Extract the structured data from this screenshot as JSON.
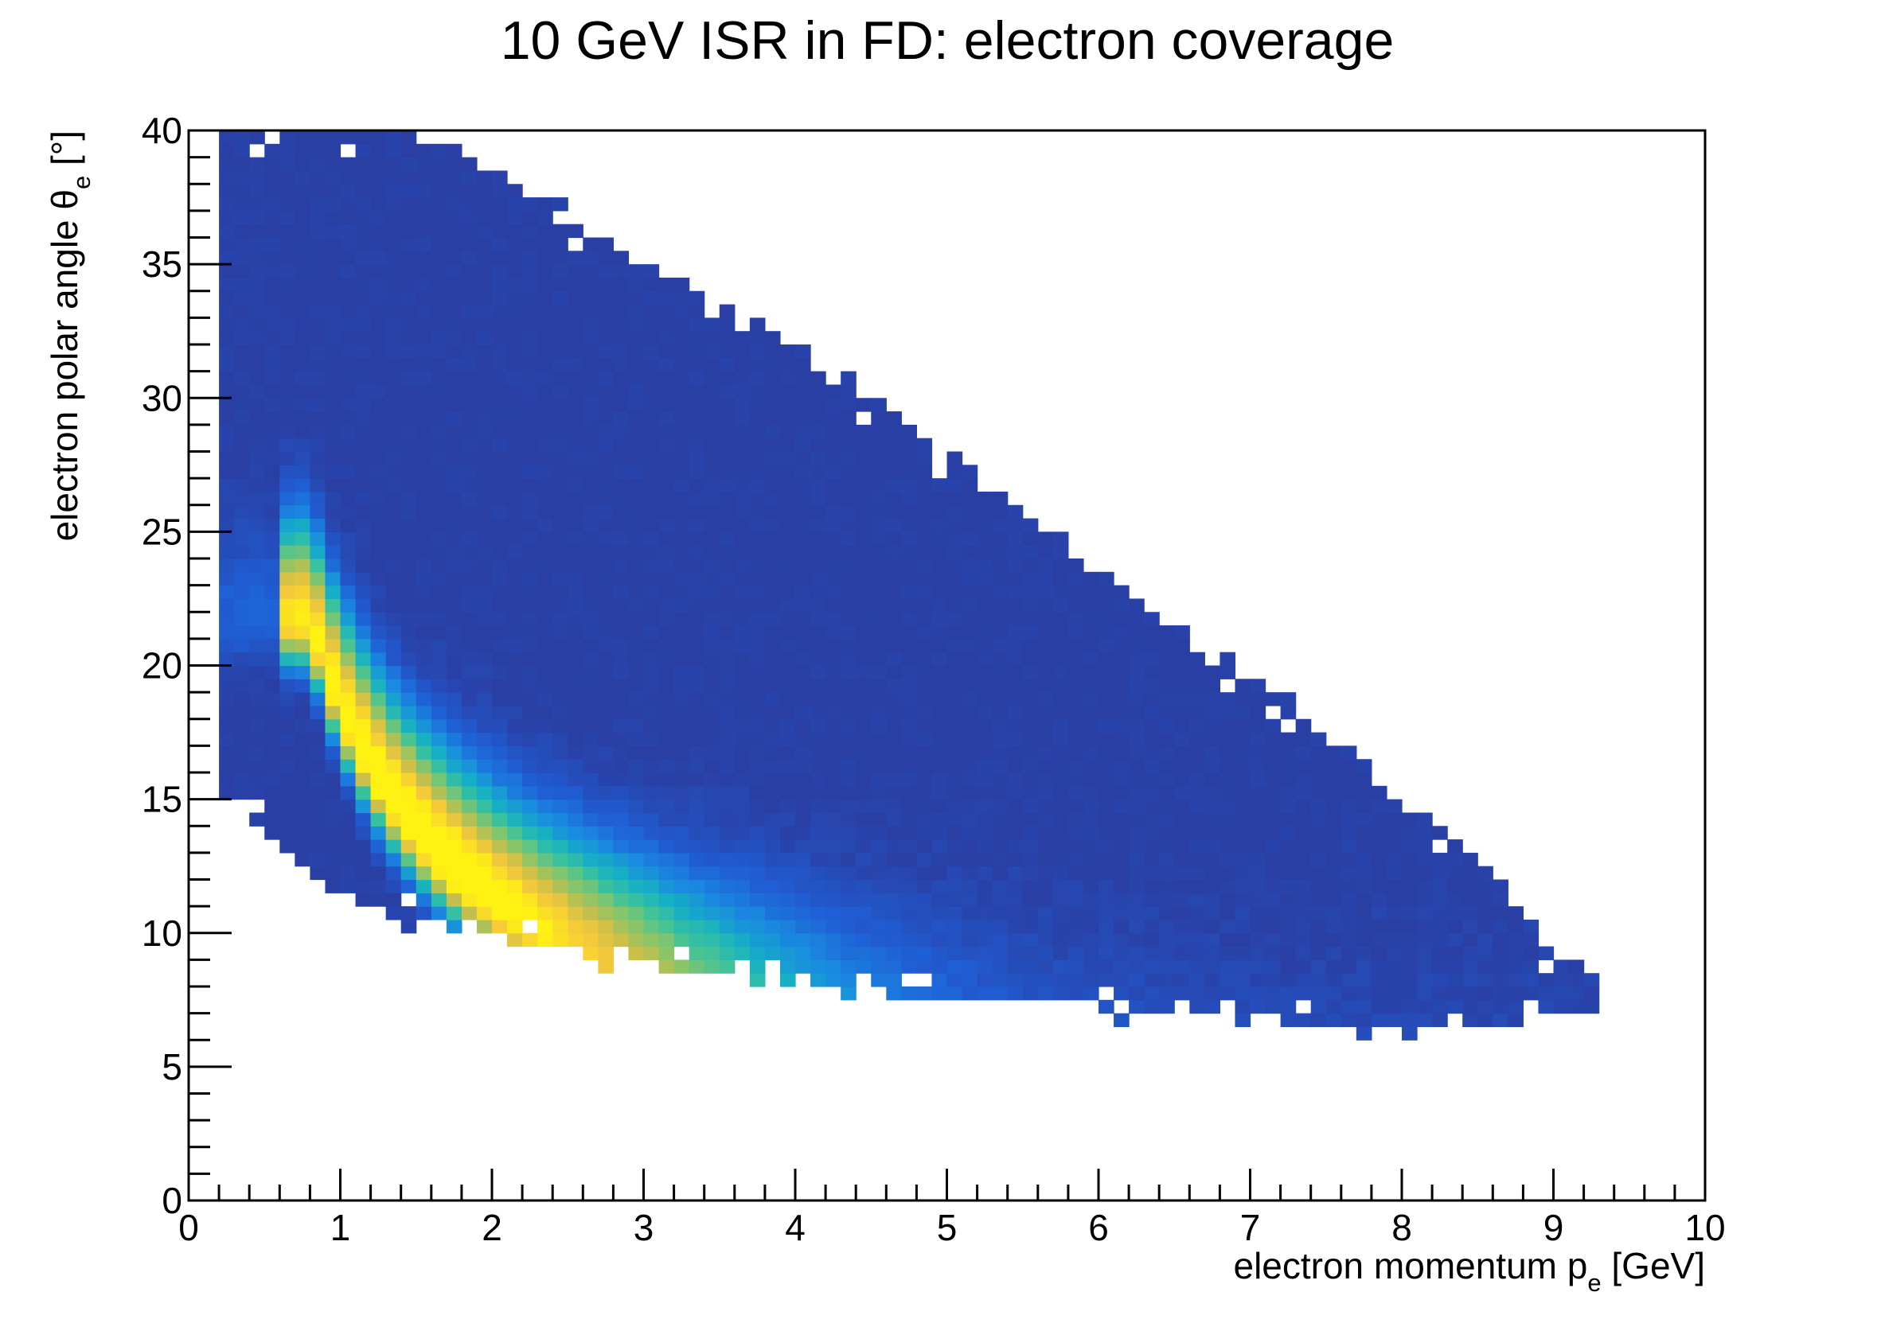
{
  "chart_data": {
    "type": "heatmap",
    "title": "10 GeV ISR in FD: electron coverage",
    "xlabel": {
      "main": "electron momentum p",
      "sub": "e",
      "unit": " [GeV]"
    },
    "ylabel": {
      "main": "electron polar angle θ",
      "sub": "e",
      "unit": " [°]"
    },
    "xlim": [
      0,
      10
    ],
    "ylim": [
      0,
      40
    ],
    "x_ticks": [
      {
        "value": 0,
        "label": "0"
      },
      {
        "value": 1,
        "label": "1"
      },
      {
        "value": 2,
        "label": "2"
      },
      {
        "value": 3,
        "label": "3"
      },
      {
        "value": 4,
        "label": "4"
      },
      {
        "value": 5,
        "label": "5"
      },
      {
        "value": 6,
        "label": "6"
      },
      {
        "value": 7,
        "label": "7"
      },
      {
        "value": 8,
        "label": "8"
      },
      {
        "value": 9,
        "label": "9"
      },
      {
        "value": 10,
        "label": "10"
      }
    ],
    "y_ticks": [
      {
        "value": 0,
        "label": "0"
      },
      {
        "value": 5,
        "label": "5"
      },
      {
        "value": 10,
        "label": "10"
      },
      {
        "value": 15,
        "label": "15"
      },
      {
        "value": 20,
        "label": "20"
      },
      {
        "value": 25,
        "label": "25"
      },
      {
        "value": 30,
        "label": "30"
      },
      {
        "value": 35,
        "label": "35"
      },
      {
        "value": 40,
        "label": "40"
      }
    ],
    "x_minor_per_major": 5,
    "y_minor_per_major": 5,
    "bin_width": 0.1,
    "bin_height": 0.5,
    "grid": false,
    "colorbar": false,
    "colormap": [
      "#2a3fa4",
      "#1f5fd6",
      "#1a8be0",
      "#16b0c4",
      "#3dc39a",
      "#85c56c",
      "#c9bf4a",
      "#f5c93a",
      "#fff212"
    ],
    "distribution": {
      "description_of_regions": "single-ridge density",
      "ridge_theta_at_p1": 18.5,
      "ridge_power": 0.72,
      "upper_edge": [
        [
          0.3,
          40
        ],
        [
          1.5,
          40
        ],
        [
          2.0,
          38.5
        ],
        [
          3.0,
          35
        ],
        [
          4.0,
          32
        ],
        [
          5.0,
          28
        ],
        [
          6.0,
          23.5
        ],
        [
          7.0,
          19.5
        ],
        [
          8.0,
          15
        ],
        [
          8.5,
          13
        ],
        [
          8.9,
          10
        ],
        [
          9.3,
          8
        ]
      ],
      "lower_edge": [
        [
          0.3,
          15
        ],
        [
          0.8,
          12
        ],
        [
          1.5,
          10.5
        ],
        [
          2.0,
          10
        ],
        [
          3.0,
          8.8
        ],
        [
          4.0,
          8
        ],
        [
          5.0,
          7.6
        ],
        [
          6.0,
          7.2
        ],
        [
          7.0,
          6.8
        ],
        [
          8.0,
          6.5
        ],
        [
          9.0,
          6.8
        ],
        [
          9.3,
          7.2
        ]
      ],
      "peak": {
        "p": 1.6,
        "theta": 19
      }
    }
  }
}
